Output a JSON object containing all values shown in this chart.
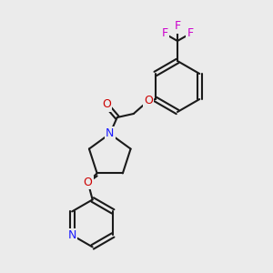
{
  "bg_color": "#ebebeb",
  "bond_color": "#1a1a1a",
  "bond_width": 1.5,
  "atom_colors": {
    "N": "#1a1aff",
    "O": "#cc0000",
    "F": "#cc00cc",
    "C": "#1a1a1a"
  },
  "font_size": 9,
  "font_size_F": 9
}
